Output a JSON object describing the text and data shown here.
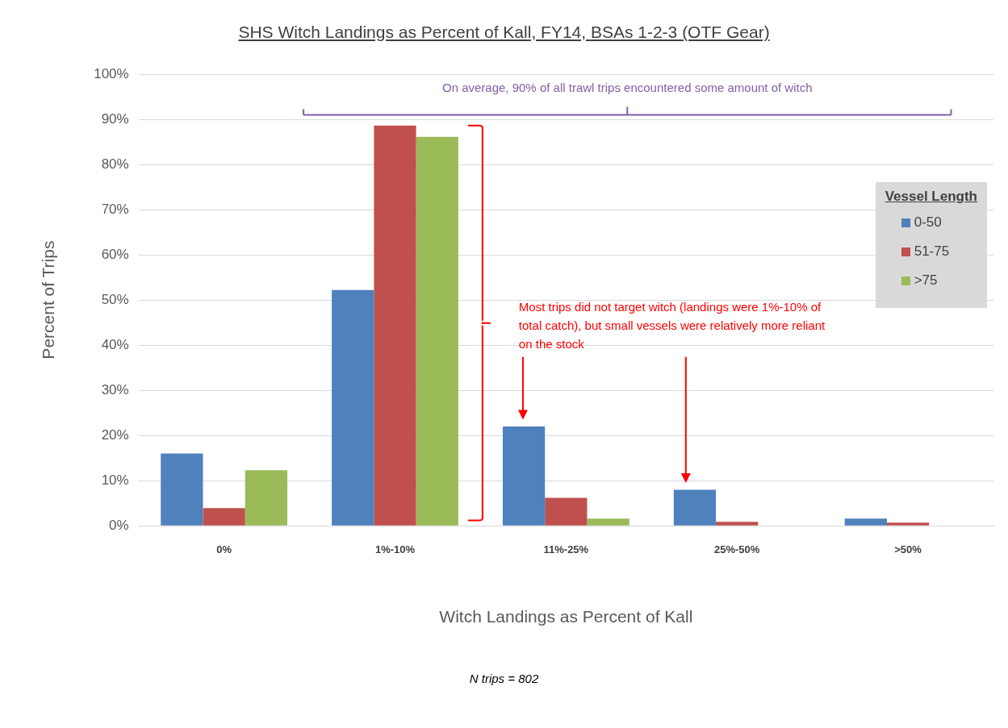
{
  "chart_data": {
    "type": "bar",
    "title": "SHS Witch Landings as Percent of Kall, FY14, BSAs 1-2-3 (OTF Gear)",
    "xlabel": "Witch Landings as Percent of Kall",
    "ylabel": "Percent of Trips",
    "legend_title": "Vessel Length",
    "categories": [
      "0%",
      "1%-10%",
      "11%-25%",
      "25%-50%",
      ">50%"
    ],
    "series": [
      {
        "name": "0-50",
        "color": "#4f81bd",
        "values": [
          16.0,
          52.2,
          22.0,
          8.0,
          1.6
        ]
      },
      {
        "name": "51-75",
        "color": "#c0504d",
        "values": [
          3.9,
          88.6,
          6.2,
          0.9,
          0.7
        ]
      },
      {
        "name": ">75",
        "color": "#9bbb59",
        "values": [
          12.3,
          86.1,
          1.6,
          0,
          0
        ]
      }
    ],
    "ylim": [
      0,
      100
    ],
    "yticks": [
      {
        "value": 0,
        "label": "0%"
      },
      {
        "value": 10,
        "label": "10%"
      },
      {
        "value": 20,
        "label": "20%"
      },
      {
        "value": 30,
        "label": "30%"
      },
      {
        "value": 40,
        "label": "40%"
      },
      {
        "value": 50,
        "label": "50%"
      },
      {
        "value": 60,
        "label": "60%"
      },
      {
        "value": 70,
        "label": "70%"
      },
      {
        "value": 80,
        "label": "80%"
      },
      {
        "value": 90,
        "label": "90%"
      },
      {
        "value": 100,
        "label": "100%"
      }
    ],
    "grid": "y",
    "legend": "right",
    "annotations": [
      "On average, 90% of all trawl trips encountered some amount of witch",
      "Most trips did not target witch (landings were 1%-10% of total catch), but small vessels were relatively more reliant on the stock",
      "N trips = 802"
    ]
  }
}
